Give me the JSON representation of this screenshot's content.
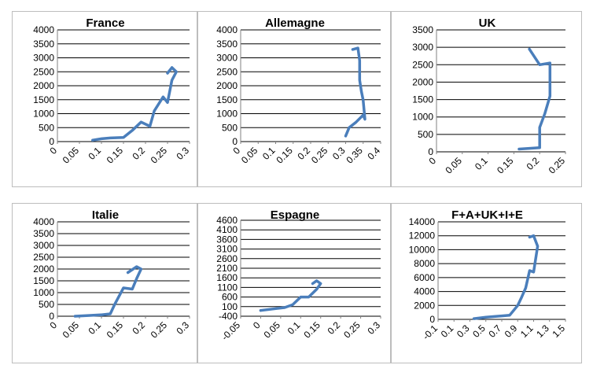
{
  "chart_data": [
    {
      "type": "line",
      "title": "France",
      "xlim": [
        0,
        0.3
      ],
      "ylim": [
        0,
        4000
      ],
      "xticks": [
        "0",
        "0.05",
        "0.1",
        "0.15",
        "0.2",
        "0.25",
        "0.3"
      ],
      "yticks": [
        "0",
        "500",
        "1000",
        "1500",
        "2000",
        "2500",
        "3000",
        "3500",
        "4000"
      ],
      "grid": "horizontal",
      "series": [
        {
          "color": "#4a7ebb",
          "x": [
            0.08,
            0.1,
            0.12,
            0.15,
            0.17,
            0.19,
            0.21,
            0.22,
            0.24,
            0.25,
            0.26,
            0.27,
            0.26,
            0.25
          ],
          "y": [
            50,
            100,
            130,
            150,
            400,
            700,
            550,
            1100,
            1600,
            1400,
            2200,
            2500,
            2650,
            2450
          ]
        }
      ]
    },
    {
      "type": "line",
      "title": "Allemagne",
      "xlim": [
        0,
        0.4
      ],
      "ylim": [
        0,
        4000
      ],
      "xticks": [
        "0",
        "0.05",
        "0.1",
        "0.15",
        "0.2",
        "0.25",
        "0.3",
        "0.35",
        "0.4"
      ],
      "yticks": [
        "0",
        "500",
        "1000",
        "1500",
        "2000",
        "2500",
        "3000",
        "3500",
        "4000"
      ],
      "grid": "horizontal",
      "series": [
        {
          "color": "#4a7ebb",
          "x": [
            0.3,
            0.31,
            0.33,
            0.35,
            0.355,
            0.35,
            0.345,
            0.34,
            0.34,
            0.335,
            0.32
          ],
          "y": [
            200,
            500,
            700,
            950,
            800,
            1500,
            1800,
            2200,
            2900,
            3350,
            3300
          ]
        }
      ]
    },
    {
      "type": "line",
      "title": "UK",
      "xlim": [
        0,
        0.25
      ],
      "ylim": [
        0,
        3500
      ],
      "xticks": [
        "0",
        "0.05",
        "0.1",
        "0.15",
        "0.2",
        "0.25"
      ],
      "yticks": [
        "0",
        "500",
        "1000",
        "1500",
        "2000",
        "2500",
        "3000",
        "3500"
      ],
      "grid": "horizontal",
      "series": [
        {
          "color": "#4a7ebb",
          "x": [
            0.16,
            0.18,
            0.2,
            0.2,
            0.2,
            0.21,
            0.22,
            0.22,
            0.22,
            0.2,
            0.18
          ],
          "y": [
            80,
            100,
            120,
            400,
            700,
            1100,
            1600,
            2000,
            2550,
            2500,
            2950
          ]
        }
      ]
    },
    {
      "type": "line",
      "title": "Italie",
      "xlim": [
        0,
        0.3
      ],
      "ylim": [
        0,
        4000
      ],
      "xticks": [
        "0",
        "0.05",
        "0.1",
        "0.15",
        "0.2",
        "0.25",
        "0.3"
      ],
      "yticks": [
        "0",
        "500",
        "1000",
        "1500",
        "2000",
        "2500",
        "3000",
        "3500",
        "4000"
      ],
      "grid": "horizontal",
      "series": [
        {
          "color": "#4a7ebb",
          "x": [
            0.04,
            0.07,
            0.1,
            0.12,
            0.13,
            0.15,
            0.17,
            0.18,
            0.19,
            0.18,
            0.16
          ],
          "y": [
            0,
            30,
            60,
            100,
            500,
            1200,
            1150,
            1600,
            2000,
            2100,
            1850
          ]
        }
      ]
    },
    {
      "type": "line",
      "title": "Espagne",
      "xlim": [
        -0.05,
        0.3
      ],
      "ylim": [
        -400,
        4600
      ],
      "xticks": [
        "-0.05",
        "0",
        "0.05",
        "0.1",
        "0.15",
        "0.2",
        "0.25",
        "0.3"
      ],
      "yticks": [
        "-400",
        "100",
        "600",
        "1100",
        "1600",
        "2100",
        "2600",
        "3100",
        "3600",
        "4100",
        "4600"
      ],
      "grid": "horizontal",
      "series": [
        {
          "color": "#4a7ebb",
          "x": [
            0.0,
            0.04,
            0.06,
            0.08,
            0.1,
            0.12,
            0.14,
            0.15,
            0.14,
            0.13
          ],
          "y": [
            -100,
            0,
            50,
            200,
            600,
            600,
            1000,
            1300,
            1450,
            1300
          ]
        }
      ]
    },
    {
      "type": "line",
      "title": "F+A+UK+I+E",
      "xlim": [
        -0.1,
        1.5
      ],
      "ylim": [
        0,
        14000
      ],
      "xticks": [
        "-0.1",
        "0.1",
        "0.3",
        "0.5",
        "0.7",
        "0.9",
        "1.1",
        "1.3",
        "1.5"
      ],
      "yticks": [
        "0",
        "2000",
        "4000",
        "6000",
        "8000",
        "10000",
        "12000",
        "14000"
      ],
      "grid": "horizontal",
      "series": [
        {
          "color": "#4a7ebb",
          "x": [
            0.35,
            0.5,
            0.7,
            0.8,
            0.9,
            0.95,
            1.0,
            1.05,
            1.1,
            1.15,
            1.1,
            1.05
          ],
          "y": [
            100,
            300,
            500,
            600,
            2000,
            3200,
            4500,
            7000,
            6800,
            10500,
            12000,
            11800
          ]
        }
      ]
    }
  ]
}
